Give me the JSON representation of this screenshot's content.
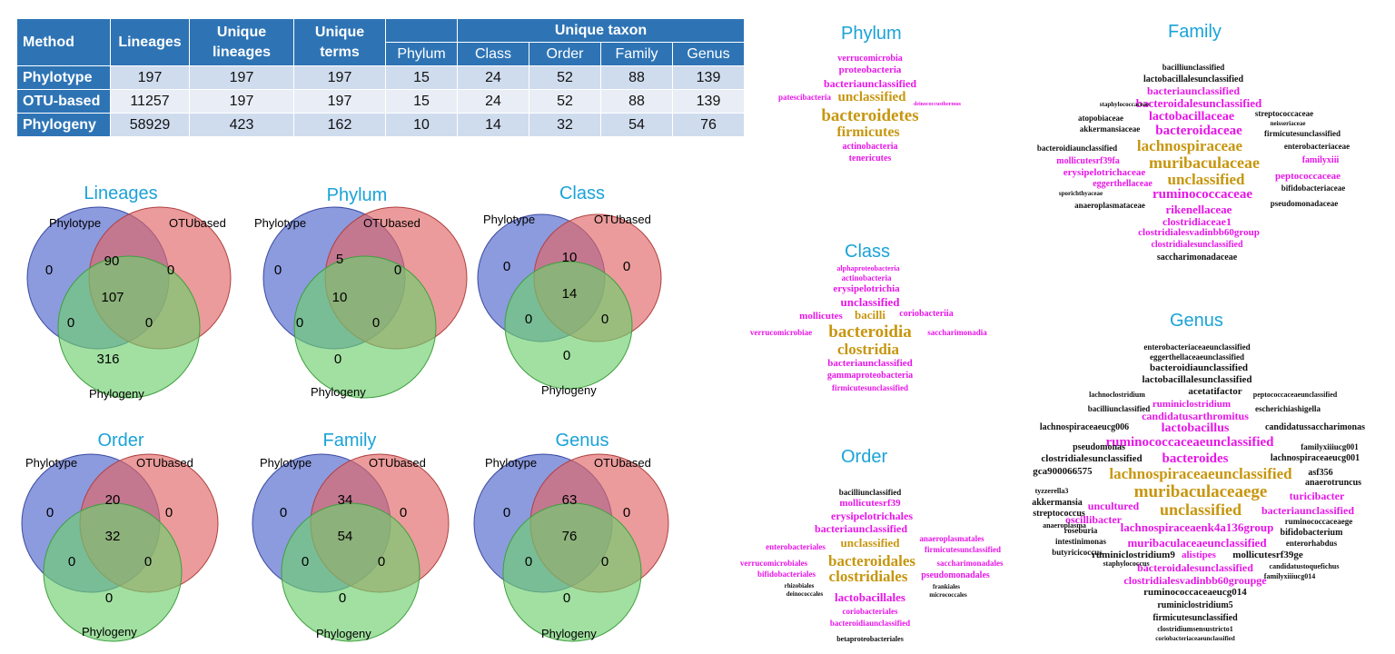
{
  "table": {
    "headers": {
      "method": "Method",
      "lineages": "Lineages",
      "unique_lineages": "Unique lineages",
      "unique_terms": "Unique terms",
      "unique_taxon": "Unique taxon",
      "ranks": [
        "Phylum",
        "Class",
        "Order",
        "Family",
        "Genus"
      ]
    },
    "rows": [
      {
        "method": "Phylotype",
        "values": [
          "197",
          "197",
          "197",
          "15",
          "24",
          "52",
          "88",
          "139"
        ]
      },
      {
        "method": "OTU-based",
        "values": [
          "11257",
          "197",
          "197",
          "15",
          "24",
          "52",
          "88",
          "139"
        ]
      },
      {
        "method": "Phylogeny",
        "values": [
          "58929",
          "423",
          "162",
          "10",
          "14",
          "32",
          "54",
          "76"
        ]
      }
    ]
  },
  "venn_colors": {
    "phylotype": "#5b6fd0",
    "otubased": "#e06666",
    "phylogeny": "#6fcf6f"
  },
  "venns": [
    {
      "title": "Lineages",
      "set_a": "Phylotype",
      "set_b": "OTUbased",
      "set_c": "Phylogeny",
      "a": "0",
      "b": "0",
      "ab": "90",
      "abc": "107",
      "ac": "0",
      "bc": "0",
      "c": "316"
    },
    {
      "title": "Phylum",
      "set_a": "Phylotype",
      "set_b": "OTUbased",
      "set_c": "Phylogeny",
      "a": "0",
      "b": "0",
      "ab": "5",
      "abc": "10",
      "ac": "0",
      "bc": "0",
      "c": "0"
    },
    {
      "title": "Class",
      "set_a": "Phylotype",
      "set_b": "OTUbased",
      "set_c": "Phylogeny",
      "a": "0",
      "b": "0",
      "ab": "10",
      "abc": "14",
      "ac": "0",
      "bc": "0",
      "c": "0"
    },
    {
      "title": "Order",
      "set_a": "Phylotype",
      "set_b": "OTUbased",
      "set_c": "Phylogeny",
      "a": "0",
      "b": "0",
      "ab": "20",
      "abc": "32",
      "ac": "0",
      "bc": "0",
      "c": "0"
    },
    {
      "title": "Family",
      "set_a": "Phylotype",
      "set_b": "OTUbased",
      "set_c": "Phylogeny",
      "a": "0",
      "b": "0",
      "ab": "34",
      "abc": "54",
      "ac": "0",
      "bc": "0",
      "c": "0"
    },
    {
      "title": "Genus",
      "set_a": "Phylotype",
      "set_b": "OTUbased",
      "set_c": "Phylogeny",
      "a": "0",
      "b": "0",
      "ab": "63",
      "abc": "76",
      "ac": "0",
      "bc": "0",
      "c": "0"
    }
  ],
  "clouds": {
    "phylum": {
      "title": "Phylum",
      "words": [
        "verrucomicrobia",
        "proteobacteria",
        "bacteriaunclassified",
        "unclassified",
        "patescibacteria",
        "deinococcusthermus",
        "bacteroidetes",
        "firmicutes",
        "actinobacteria",
        "tenericutes"
      ]
    },
    "class": {
      "title": "Class",
      "words": [
        "alphaproteobacteria",
        "actinobacteria",
        "erysipelotrichia",
        "unclassified",
        "mollicutes",
        "bacilli",
        "coriobacteriia",
        "bacteroidia",
        "verrucomicrobiae",
        "saccharimonadia",
        "clostridia",
        "bacteriaunclassified",
        "gammaproteobacteria",
        "firmicutesunclassified"
      ]
    },
    "order": {
      "title": "Order",
      "words": [
        "bacilliunclassified",
        "mollicutesrf39",
        "erysipelotrichales",
        "bacteriaunclassified",
        "anaeroplasmatales",
        "enterobacteriales",
        "unclassified",
        "firmicutesunclassified",
        "verrucomicrobiales",
        "bacteroidales",
        "saccharimonadales",
        "bifidobacteriales",
        "clostridiales",
        "pseudomonadales",
        "lactobacillales",
        "coriobacteriales",
        "bacteroidiaunclassified",
        "rhizobiales",
        "deinococcales",
        "frankiales",
        "micrococcales",
        "betaproteobacteriales"
      ]
    },
    "family": {
      "title": "Family",
      "words": [
        "bacilliunclassified",
        "lactobacillalesunclassified",
        "bacteriaunclassified",
        "bacteroidalesunclassified",
        "lactobacillaceae",
        "atopobiaceae",
        "streptococcaceae",
        "akkermansiaceae",
        "bacteroidaceae",
        "firmicutesunclassified",
        "bacteroidiaunclassified",
        "lachnospiraceae",
        "enterobacteriaceae",
        "mollicutesrf39fa",
        "muribaculaceae",
        "familyxiii",
        "erysipelotrichaceae",
        "unclassified",
        "peptococcaceae",
        "eggerthellaceae",
        "bifidobacteriaceae",
        "ruminococcaceae",
        "anaeroplasmataceae",
        "pseudomonadaceae",
        "rikenellaceae",
        "clostridiaceae1",
        "clostridialesvadinbb60group",
        "clostridialesunclassified",
        "saccharimonadaceae",
        "staphylococcaceae",
        "sporichthyaceae",
        "neisseriaceae"
      ]
    },
    "genus": {
      "title": "Genus",
      "words": [
        "enterobacteriaceaeunclassified",
        "eggerthellaceaeunclassified",
        "bacteroidiaunclassified",
        "lactobacillalesunclassified",
        "acetatifactor",
        "lachnoclostridium",
        "peptococcaceaeunclassified",
        "ruminiclostridium",
        "bacilliunclassified",
        "escherichiashigella",
        "candidatusarthromitus",
        "lachnospiraceaeucg006",
        "lactobacillus",
        "candidatussaccharimonas",
        "ruminococcaceaeunclassified",
        "familyxiiiucg001",
        "pseudomonas",
        "lachnospiraceaeucg001",
        "clostridialesunclassified",
        "bacteroides",
        "gca900066575",
        "lachnospiraceaeunclassified",
        "asf356",
        "tyzzerella3",
        "muribaculaceaege",
        "anaerotruncus",
        "akkermansia",
        "unclassified",
        "turicibacter",
        "streptococcus",
        "uncultured",
        "bacteriaunclassified",
        "oscillibacter",
        "ruminococcaceaege",
        "roseburia",
        "lachnospiraceaenk4a136group",
        "bifidobacterium",
        "intestinimonas",
        "muribaculaceaeunclassified",
        "enterorhabdus",
        "butyricicoccus",
        "ruminiclostridium9",
        "alistipes",
        "mollicutesrf39ge",
        "bacteroidalesunclassified",
        "clostridialesvadinbb60groupge",
        "ruminococcaceaeucg014",
        "ruminiclostridium5",
        "firmicutesunclassified",
        "clostridiumsensustricto1",
        "coriobacteriaceaeunclassified",
        "anaeroplasma",
        "staphylococcus",
        "candidatustoquefichus",
        "familyxiiiucg014"
      ]
    }
  }
}
